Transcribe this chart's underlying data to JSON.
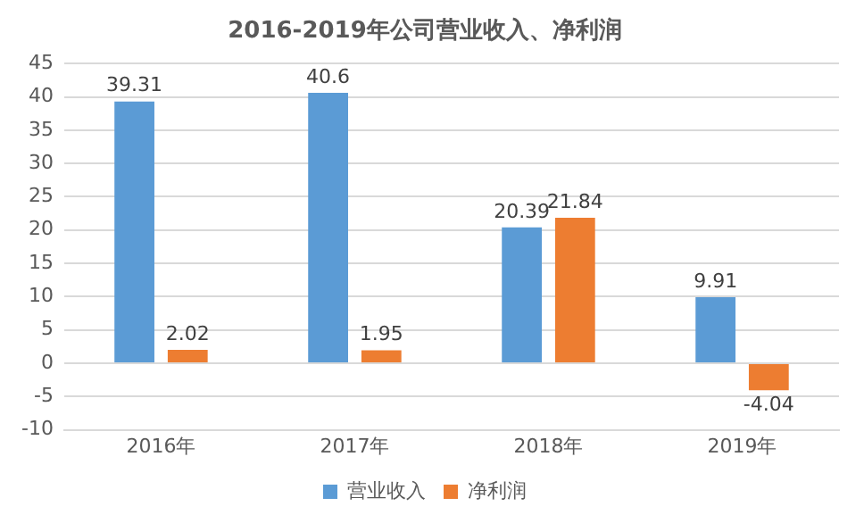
{
  "chart_data": {
    "type": "bar",
    "title": "2016-2019年公司营业收入、净利润",
    "categories": [
      "2016年",
      "2017年",
      "2018年",
      "2019年"
    ],
    "series": [
      {
        "name": "营业收入",
        "color": "#5b9bd5",
        "values": [
          39.31,
          40.6,
          20.39,
          9.91
        ]
      },
      {
        "name": "净利润",
        "color": "#ed7d31",
        "values": [
          2.02,
          1.95,
          21.84,
          -4.04
        ]
      }
    ],
    "ylim": [
      -10,
      45
    ],
    "yticks": [
      -10,
      -5,
      0,
      5,
      10,
      15,
      20,
      25,
      30,
      35,
      40,
      45
    ],
    "grid": "y",
    "legend": "bottom",
    "data_labels": true
  }
}
